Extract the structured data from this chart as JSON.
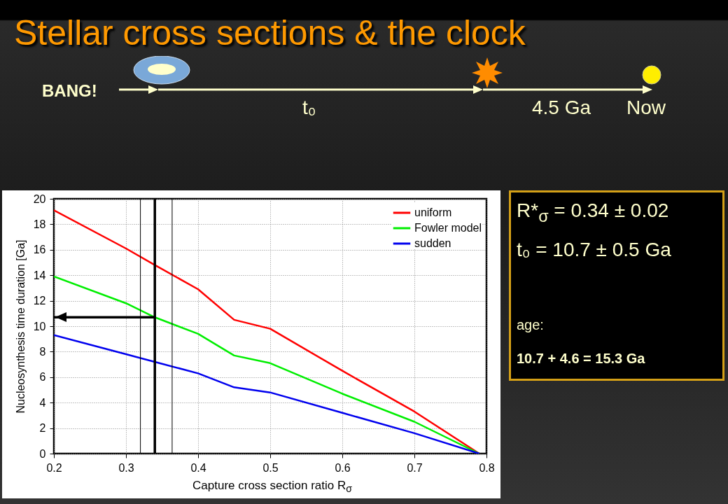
{
  "chart_data": {
    "type": "line",
    "title": "Stellar cross sections & the clock",
    "xlabel": "Capture cross section ratio R$_{σ}$",
    "ylabel": "Nucleosynthesis time duration  [Ga]",
    "x": [
      0.2,
      0.3,
      0.34,
      0.4,
      0.45,
      0.5,
      0.6,
      0.7,
      0.79
    ],
    "series": [
      {
        "name": "uniform",
        "color": "#ff0000",
        "values": [
          19.1,
          16.1,
          14.8,
          12.9,
          10.5,
          9.8,
          6.5,
          3.3,
          0
        ]
      },
      {
        "name": "Fowler model",
        "color": "#00ee00",
        "values": [
          13.9,
          11.8,
          10.7,
          9.4,
          7.7,
          7.1,
          4.7,
          2.5,
          0
        ]
      },
      {
        "name": "sudden",
        "color": "#0000ee",
        "values": [
          9.3,
          7.8,
          7.2,
          6.3,
          5.2,
          4.8,
          3.2,
          1.6,
          0
        ]
      }
    ],
    "xlim": [
      0.2,
      0.8
    ],
    "xticks": [
      0.2,
      0.3,
      0.4,
      0.5,
      0.6,
      0.7,
      0.8
    ],
    "ylim": [
      0,
      20
    ],
    "yticks": [
      0,
      2,
      4,
      6,
      8,
      10,
      12,
      14,
      16,
      18,
      20
    ],
    "grid": true,
    "legend": "top right",
    "marker": "none",
    "line_style": "solid",
    "ref_lines": [
      {
        "axis": "x",
        "value": 0.32,
        "color": "#000000"
      },
      {
        "axis": "x",
        "value": 0.34,
        "color": "#000000"
      },
      {
        "axis": "x",
        "value": 0.364,
        "color": "#000000"
      },
      {
        "axis": "y",
        "value": 10.7,
        "color": "#000000"
      }
    ],
    "annotations": [
      "BANG!",
      "t₀",
      "4.5 Ga",
      "Now",
      "R*$_{σ}$ = 0.34 ± 0.02",
      "t₀ = 10.7 ± 0.5 Ga",
      "age:",
      "10.7 + 4.6 = 15.3 Ga"
    ]
  }
}
